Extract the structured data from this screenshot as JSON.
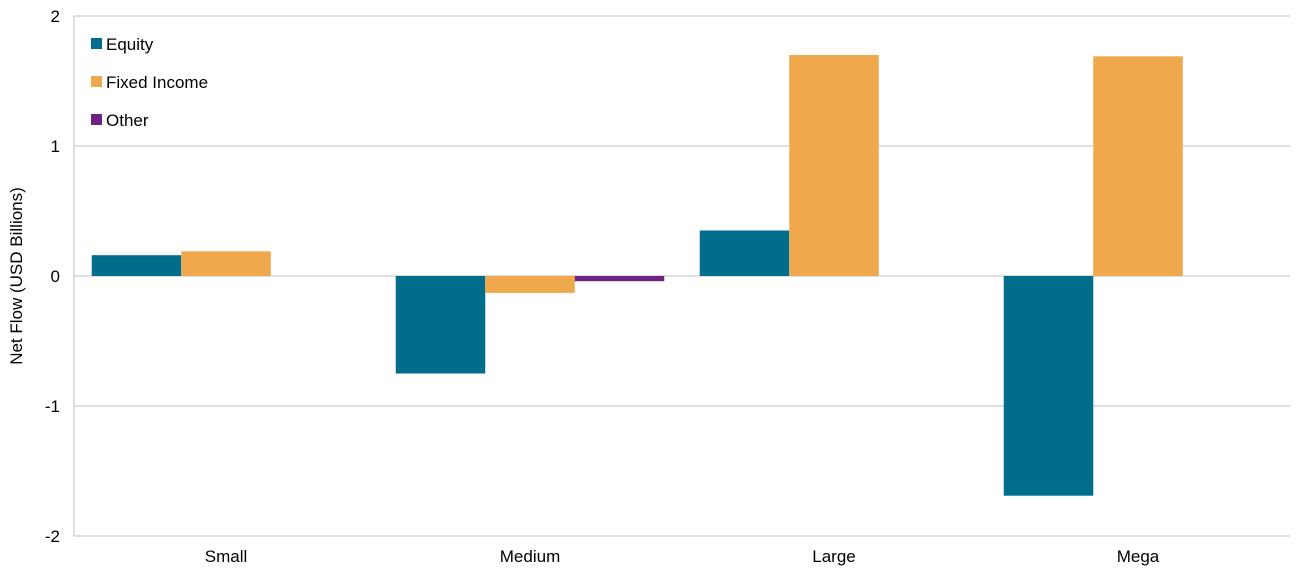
{
  "chart_data": {
    "type": "bar",
    "title": "",
    "xlabel": "",
    "ylabel": "Net Flow (USD Billions)",
    "categories": [
      "Small",
      "Medium",
      "Large",
      "Mega"
    ],
    "series": [
      {
        "name": "Equity",
        "color": "#006E8A",
        "values": [
          0.16,
          -0.75,
          0.35,
          -1.69
        ]
      },
      {
        "name": "Fixed Income",
        "color": "#F0A84D",
        "values": [
          0.19,
          -0.13,
          1.7,
          1.69
        ]
      },
      {
        "name": "Other",
        "color": "#6E2383",
        "values": [
          0.0,
          -0.04,
          0.0,
          0.0
        ]
      }
    ],
    "ylim": [
      -2,
      2
    ],
    "yticks": [
      2,
      1,
      0,
      -1,
      -2
    ],
    "ytick_labels": [
      "2",
      "1",
      "0",
      "-1",
      "-2"
    ],
    "grid": true,
    "legend_position": "top-left",
    "gridline_color": "#BFBFBF"
  }
}
